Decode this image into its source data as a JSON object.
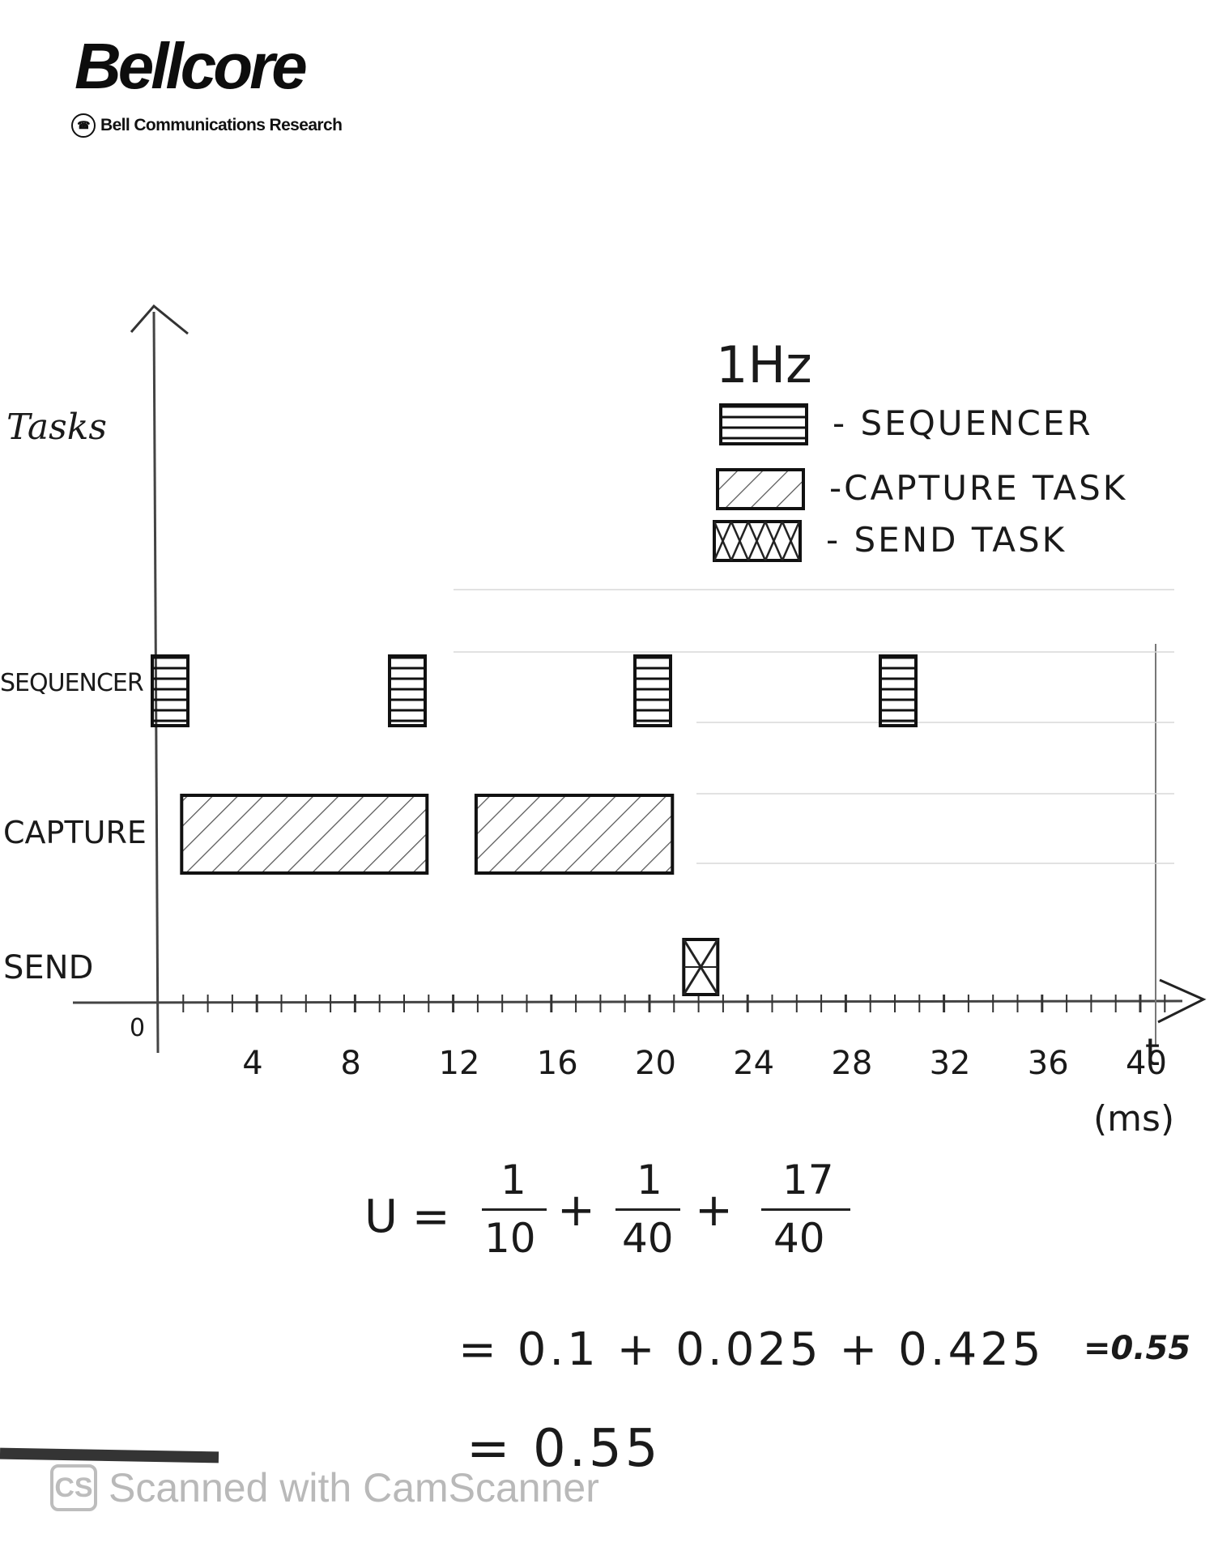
{
  "header": {
    "logo_title": "Bellcore",
    "logo_subtitle": "Bell Communications Research"
  },
  "legend": {
    "frequency": "1Hz",
    "items": [
      {
        "label": "- SEQUENCER",
        "pattern": "horizontal-lines"
      },
      {
        "label": "-CAPTURE TASK",
        "pattern": "diagonal-hatch"
      },
      {
        "label": "- SEND TASK",
        "pattern": "cross-hatch"
      }
    ]
  },
  "axes": {
    "y_label": "Tasks",
    "x_unit": "(ms)",
    "x_origin": "0",
    "x_ticks": [
      "4",
      "8",
      "12",
      "16",
      "20",
      "24",
      "28",
      "32",
      "36",
      "40"
    ],
    "t_label": "t",
    "rows": [
      "SEQUENCER",
      "CAPTURE",
      "SEND"
    ]
  },
  "timeline": {
    "sequencer": [
      0,
      10,
      20,
      30
    ],
    "capture": [
      [
        1,
        11
      ],
      [
        13,
        21
      ]
    ],
    "send": [
      [
        21,
        22
      ]
    ]
  },
  "equations": {
    "u": "U =",
    "f1_num": "1",
    "f1_den": "10",
    "f2_num": "1",
    "f2_den": "40",
    "f3_num": "17",
    "f3_den": "40",
    "line2": "= 0.1 + 0.025 + 0.425",
    "line2_note": "=0.55",
    "line3": "= 0.55"
  },
  "footer": {
    "watermark": "Scanned with CamScanner",
    "icon": "CS"
  },
  "colors": {
    "ink": "#1a1a1a",
    "watermark": "#b9b9b9"
  }
}
